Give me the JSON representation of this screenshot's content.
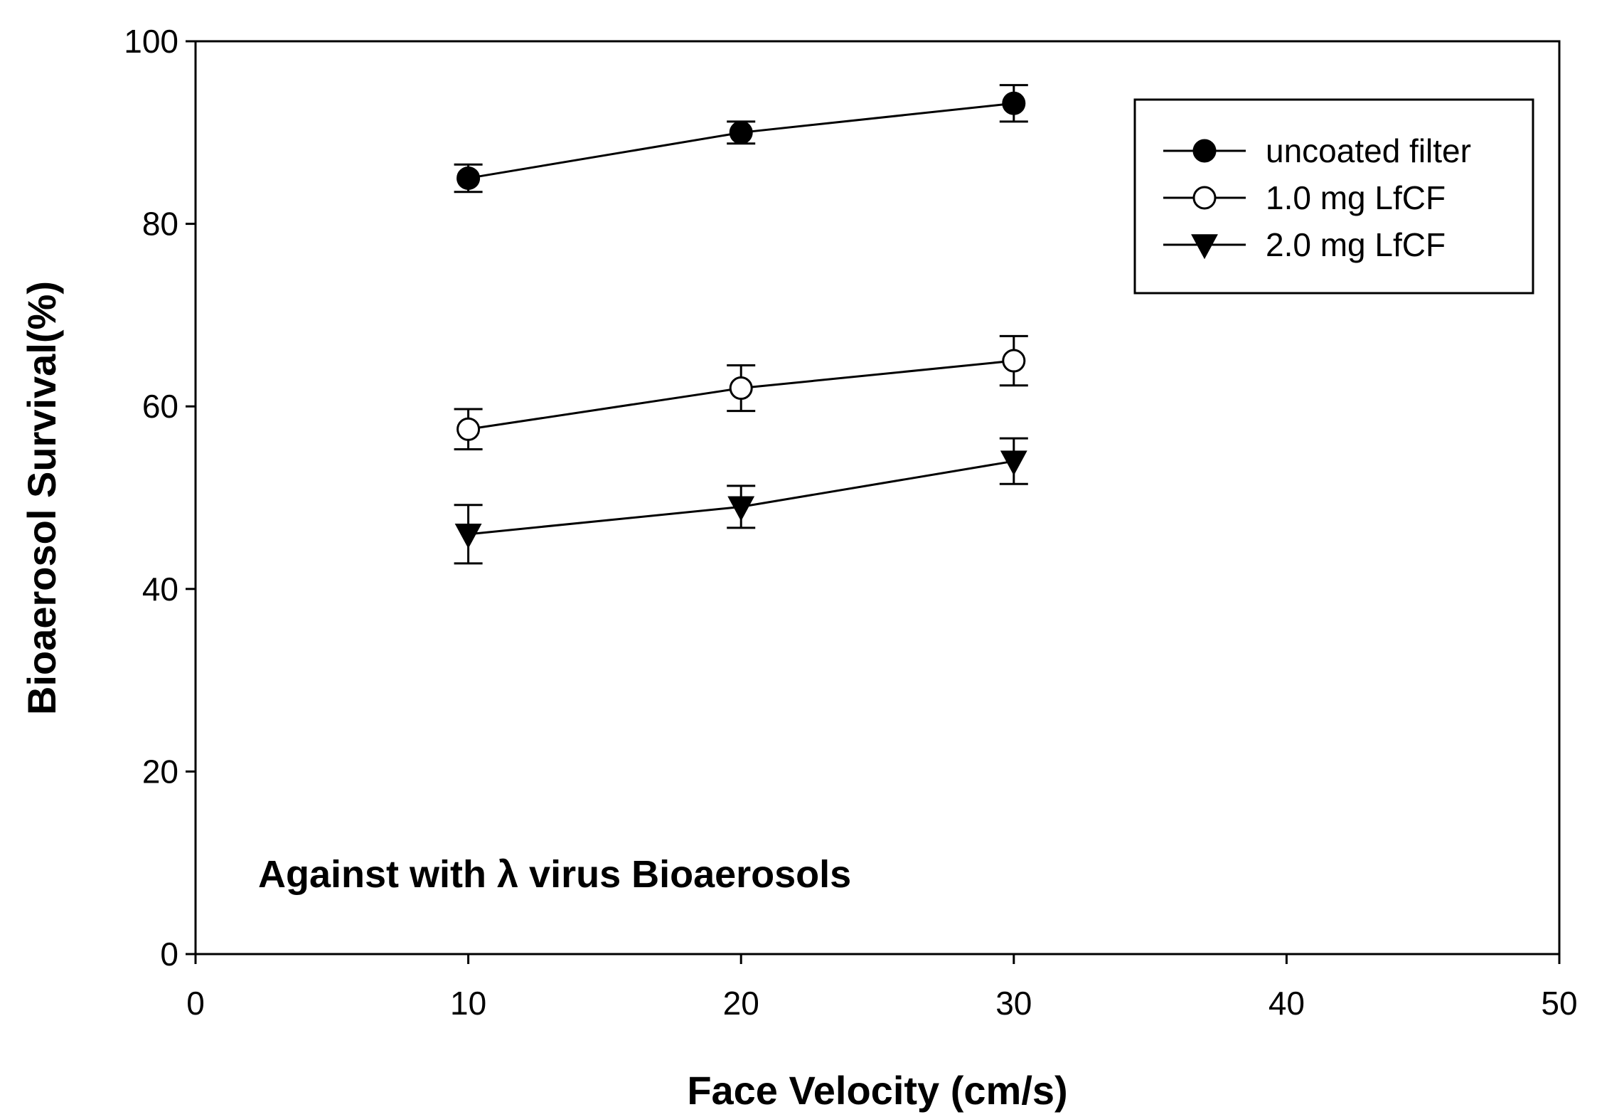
{
  "chart_data": {
    "type": "line",
    "xlabel": "Face Velocity (cm/s)",
    "ylabel": "Bioaerosol Survival(%)",
    "annotation": "Against with λ virus Bioaerosols",
    "xlim": [
      0,
      50
    ],
    "ylim": [
      0,
      100
    ],
    "x_ticks": [
      "0",
      "10",
      "20",
      "30",
      "40",
      "50"
    ],
    "y_ticks": [
      "0",
      "20",
      "40",
      "60",
      "80",
      "100"
    ],
    "grid": false,
    "legend_position": "top-right",
    "x": [
      10,
      20,
      30
    ],
    "series": [
      {
        "name": "uncoated filter",
        "marker": "filled-circle",
        "values": [
          85.0,
          90.0,
          93.2
        ],
        "error": [
          1.5,
          1.2,
          2.0
        ]
      },
      {
        "name": "1.0 mg LfCF",
        "marker": "open-circle",
        "values": [
          57.5,
          62.0,
          65.0
        ],
        "error": [
          2.2,
          2.5,
          2.7
        ]
      },
      {
        "name": "2.0 mg LfCF",
        "marker": "filled-triangle-down",
        "values": [
          46.0,
          49.0,
          54.0
        ],
        "error": [
          3.2,
          2.3,
          2.5
        ]
      }
    ]
  }
}
